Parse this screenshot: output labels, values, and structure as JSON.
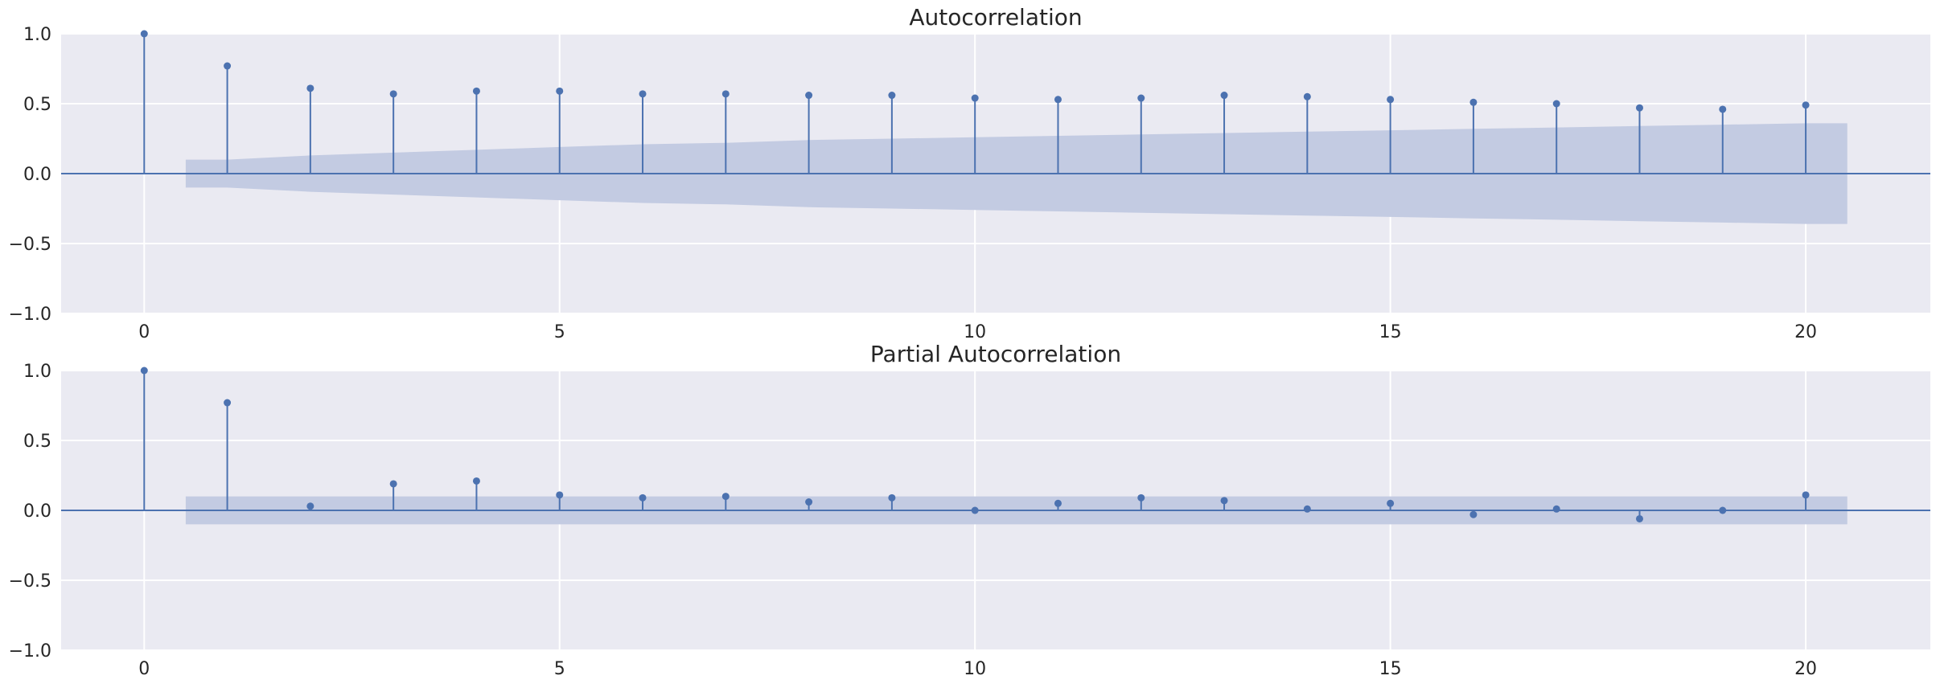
{
  "chart_data": [
    {
      "type": "stem",
      "title": "Autocorrelation",
      "xlabel": "",
      "ylabel": "",
      "xlim": [
        -1,
        21.5
      ],
      "ylim": [
        -1.0,
        1.0
      ],
      "xticks": [
        0,
        5,
        10,
        15,
        20
      ],
      "yticks": [
        1.0,
        0.5,
        0.0,
        -0.5,
        -1.0
      ],
      "xtick_labels": [
        "0",
        "5",
        "10",
        "15",
        "20"
      ],
      "ytick_labels": [
        "1.0",
        "0.5",
        "0.0",
        "−0.5",
        "−1.0"
      ],
      "grid": true,
      "lags": [
        0,
        1,
        2,
        3,
        4,
        5,
        6,
        7,
        8,
        9,
        10,
        11,
        12,
        13,
        14,
        15,
        16,
        17,
        18,
        19,
        20
      ],
      "values": [
        1.0,
        0.77,
        0.61,
        0.57,
        0.59,
        0.59,
        0.57,
        0.57,
        0.56,
        0.56,
        0.54,
        0.53,
        0.54,
        0.56,
        0.55,
        0.53,
        0.51,
        0.5,
        0.47,
        0.46,
        0.49
      ],
      "confint_x": [
        0.5,
        1,
        2,
        3,
        4,
        5,
        6,
        7,
        8,
        9,
        10,
        11,
        12,
        13,
        14,
        15,
        16,
        17,
        18,
        19,
        20,
        20.5
      ],
      "confint_upper": [
        0.1,
        0.1,
        0.13,
        0.15,
        0.17,
        0.19,
        0.21,
        0.22,
        0.24,
        0.25,
        0.26,
        0.27,
        0.28,
        0.29,
        0.3,
        0.31,
        0.32,
        0.33,
        0.34,
        0.35,
        0.36,
        0.36
      ]
    },
    {
      "type": "stem",
      "title": "Partial Autocorrelation",
      "xlabel": "",
      "ylabel": "",
      "xlim": [
        -1,
        21.5
      ],
      "ylim": [
        -1.0,
        1.0
      ],
      "xticks": [
        0,
        5,
        10,
        15,
        20
      ],
      "yticks": [
        1.0,
        0.5,
        0.0,
        -0.5,
        -1.0
      ],
      "xtick_labels": [
        "0",
        "5",
        "10",
        "15",
        "20"
      ],
      "ytick_labels": [
        "1.0",
        "0.5",
        "0.0",
        "−0.5",
        "−1.0"
      ],
      "grid": true,
      "lags": [
        0,
        1,
        2,
        3,
        4,
        5,
        6,
        7,
        8,
        9,
        10,
        11,
        12,
        13,
        14,
        15,
        16,
        17,
        18,
        19,
        20
      ],
      "values": [
        1.0,
        0.77,
        0.03,
        0.19,
        0.21,
        0.11,
        0.09,
        0.1,
        0.06,
        0.09,
        0.0,
        0.05,
        0.09,
        0.07,
        0.01,
        0.05,
        -0.03,
        0.01,
        -0.06,
        0.0,
        0.11
      ],
      "confint_x": [
        0.5,
        20.5
      ],
      "confint_upper": [
        0.1,
        0.1
      ]
    }
  ],
  "colors": {
    "stem": "#4c72b0",
    "band": "#c3cbe2",
    "plot_bg": "#eaeaf2",
    "grid": "#ffffff",
    "text": "#262626"
  }
}
